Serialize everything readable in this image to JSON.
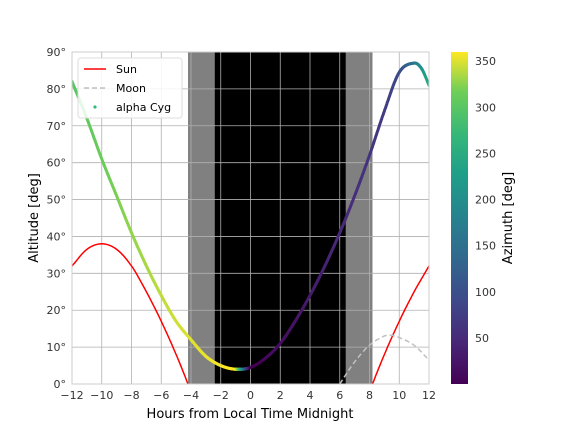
{
  "chart_data": {
    "type": "line",
    "xlabel": "Hours from Local Time Midnight",
    "ylabel": "Altitude [deg]",
    "xlim": [
      -12,
      12
    ],
    "ylim": [
      0,
      90
    ],
    "xticks": [
      -12,
      -10,
      -8,
      -6,
      -4,
      -2,
      0,
      2,
      4,
      6,
      8,
      10,
      12
    ],
    "xtick_labels": [
      "−12",
      "−10",
      "−8",
      "−6",
      "−4",
      "−2",
      "0",
      "2",
      "4",
      "6",
      "8",
      "10",
      "12"
    ],
    "yticks": [
      0,
      10,
      20,
      30,
      40,
      50,
      60,
      70,
      80,
      90
    ],
    "ytick_labels": [
      "0°",
      "10°",
      "20°",
      "30°",
      "40°",
      "50°",
      "60°",
      "70°",
      "80°",
      "90°"
    ],
    "grid": true,
    "legend_position": "top-left",
    "twilight_bands": [
      {
        "from": -4.2,
        "to": 8.2,
        "color": "#808080"
      },
      {
        "from": -2.4,
        "to": 6.4,
        "color": "#000000"
      }
    ],
    "series": [
      {
        "name": "Sun",
        "style": "solid",
        "color": "#ff0000",
        "x": [
          -12,
          -11,
          -10,
          -9,
          -8,
          -7,
          -6,
          -5,
          -4.2,
          8.2,
          9,
          10,
          11,
          12
        ],
        "y": [
          32,
          36.5,
          38,
          36.5,
          32,
          25,
          17,
          8,
          0,
          0,
          8,
          17,
          25,
          32
        ]
      },
      {
        "name": "Moon",
        "style": "dashed",
        "color": "#c0c0c0",
        "x": [
          6,
          7,
          8,
          9,
          9.5,
          10,
          11,
          12
        ],
        "y": [
          0,
          6,
          10.5,
          13,
          13.2,
          12.6,
          10.5,
          6.5
        ]
      },
      {
        "name": "alpha Cyg",
        "style": "points",
        "color_by": "azimuth",
        "x": [
          -12,
          -11,
          -10,
          -9,
          -8,
          -7,
          -6,
          -5,
          -4,
          -3,
          -2,
          -1,
          0,
          1,
          2,
          3,
          4,
          5,
          6,
          7,
          8,
          9,
          10,
          11,
          11.5,
          12
        ],
        "y": [
          82,
          72,
          61,
          51,
          41,
          32,
          24,
          17,
          12,
          7.5,
          5,
          4,
          4.5,
          7,
          11,
          17,
          24,
          32,
          41,
          51,
          62,
          74,
          84.5,
          87,
          85.5,
          81
        ],
        "azimuth": [
          298,
          305,
          312,
          319,
          326,
          333,
          340,
          345,
          350,
          354,
          357,
          358,
          2,
          8,
          15,
          22,
          30,
          38,
          46,
          54,
          62,
          73,
          95,
          160,
          205,
          248
        ]
      }
    ],
    "colorbar": {
      "label": "Azimuth [deg]",
      "range": [
        0,
        360
      ],
      "ticks": [
        50,
        100,
        150,
        200,
        250,
        300,
        350
      ],
      "tick_labels": [
        "50",
        "100",
        "150",
        "200",
        "250",
        "300",
        "350"
      ],
      "colormap": "viridis"
    }
  }
}
